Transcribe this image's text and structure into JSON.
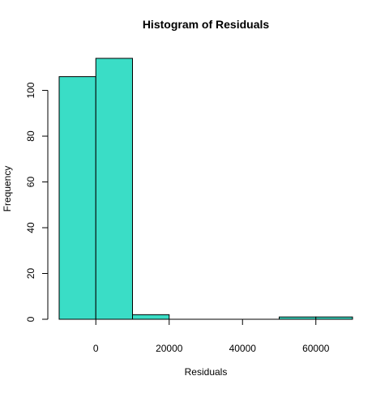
{
  "chart_data": {
    "type": "bar",
    "title": "Histogram of Residuals",
    "xlabel": "Residuals",
    "ylabel": "Frequency",
    "bar_color": "#3ADDC6",
    "edge_color": "#000000",
    "bin_edges": [
      -10000,
      0,
      10000,
      20000,
      30000,
      40000,
      50000,
      60000,
      70000
    ],
    "values": [
      106,
      114,
      2,
      0,
      0,
      0,
      1,
      1
    ],
    "xlim": [
      -10000,
      70000
    ],
    "ylim": [
      0,
      114
    ],
    "x_ticks": [
      0,
      20000,
      40000,
      60000
    ],
    "x_tick_labels": [
      "0",
      "20000",
      "40000",
      "60000"
    ],
    "y_ticks": [
      0,
      20,
      40,
      60,
      80,
      100
    ],
    "y_tick_labels": [
      "0",
      "20",
      "40",
      "60",
      "80",
      "100"
    ],
    "grid": false,
    "legend": "none"
  }
}
